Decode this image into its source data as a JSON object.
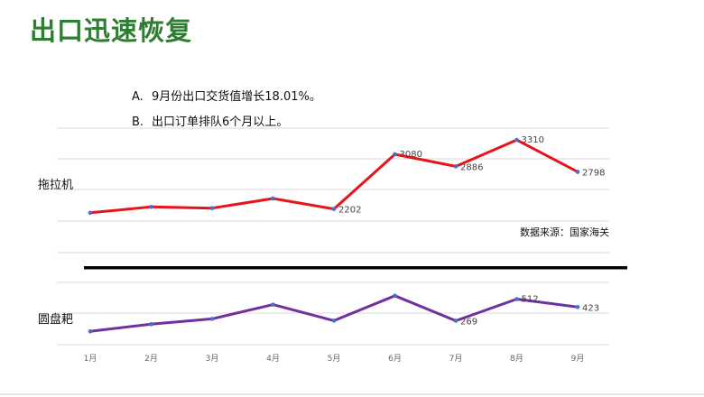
{
  "title": "出口迅速恢复",
  "bullets": [
    {
      "letter": "A.",
      "text": "9月份出口交货值增长18.01%。"
    },
    {
      "letter": "B.",
      "text": "出口订单排队6个月以上。"
    }
  ],
  "source_note": "数据来源：国家海关",
  "colors": {
    "title": "#2e7d32",
    "tractor": "#e8141b",
    "harrow": "#7030a0",
    "marker": "#4472c4"
  },
  "chart_data": [
    {
      "type": "line",
      "x": [
        "1月",
        "2月",
        "3月",
        "4月",
        "5月",
        "6月",
        "7月",
        "8月",
        "9月"
      ],
      "series": [
        {
          "name": "拖拉机",
          "values": [
            2140,
            2235,
            2215,
            2370,
            2202,
            3080,
            2886,
            3310,
            2798
          ],
          "labels": [
            "",
            "",
            "",
            "",
            "2202",
            "3080",
            "2886",
            "3310",
            "2798"
          ]
        }
      ],
      "ylim": [
        1500,
        3500
      ],
      "grid": true
    },
    {
      "type": "line",
      "x": [
        "1月",
        "2月",
        "3月",
        "4月",
        "5月",
        "6月",
        "7月",
        "8月",
        "9月"
      ],
      "series": [
        {
          "name": "圆盘耙",
          "values": [
            150,
            230,
            290,
            450,
            270,
            550,
            269,
            512,
            423
          ],
          "labels": [
            "",
            "",
            "",
            "",
            "",
            "",
            "269",
            "512",
            "423"
          ]
        }
      ],
      "ylim": [
        0,
        700
      ],
      "grid": true
    }
  ]
}
